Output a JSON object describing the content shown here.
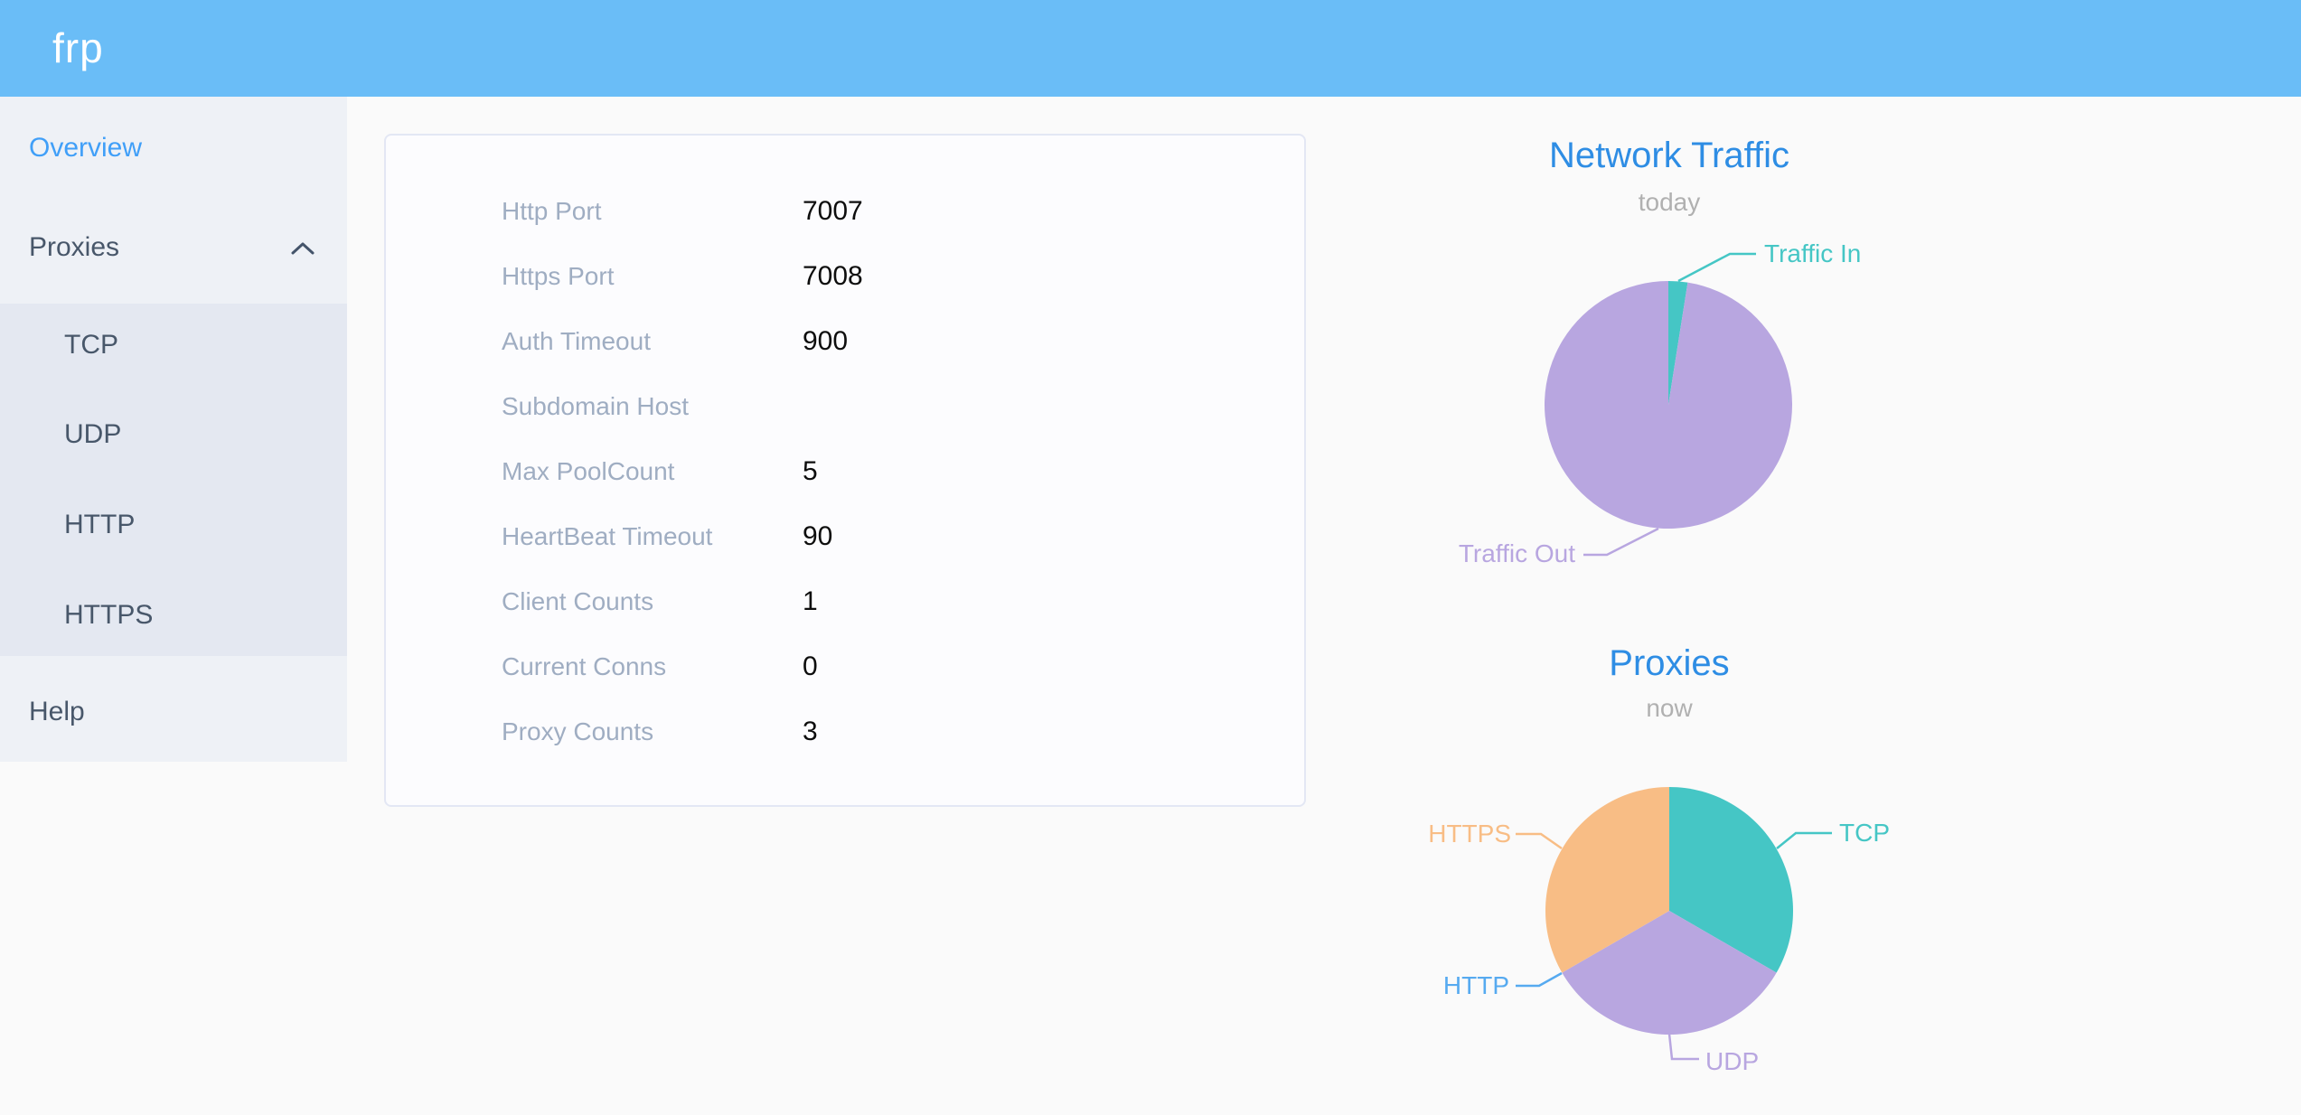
{
  "header": {
    "logo": "frp"
  },
  "sidebar": {
    "items": [
      {
        "label": "Overview",
        "active": true
      },
      {
        "label": "Proxies",
        "expanded": true
      },
      {
        "label": "Help"
      }
    ],
    "proxies_children": [
      "TCP",
      "UDP",
      "HTTP",
      "HTTPS"
    ]
  },
  "server_info": {
    "rows": [
      {
        "label": "Http Port",
        "value": "7007"
      },
      {
        "label": "Https Port",
        "value": "7008"
      },
      {
        "label": "Auth Timeout",
        "value": "900"
      },
      {
        "label": "Subdomain Host",
        "value": ""
      },
      {
        "label": "Max PoolCount",
        "value": "5"
      },
      {
        "label": "HeartBeat Timeout",
        "value": "90"
      },
      {
        "label": "Client Counts",
        "value": "1"
      },
      {
        "label": "Current Conns",
        "value": "0"
      },
      {
        "label": "Proxy Counts",
        "value": "3"
      }
    ]
  },
  "chart_data": [
    {
      "type": "pie",
      "title": "Network Traffic",
      "subtitle": "today",
      "legend_position": "none",
      "label_style": "outside with leader lines",
      "value_unit": "percent, estimated from slice angles (no numeric labels shown)",
      "series": [
        {
          "name": "Traffic In",
          "value": 2.5,
          "color": "#45c6c5"
        },
        {
          "name": "Traffic Out",
          "value": 97.5,
          "color": "#b8a6e0"
        }
      ]
    },
    {
      "type": "pie",
      "title": "Proxies",
      "subtitle": "now",
      "legend_position": "none",
      "label_style": "outside with leader lines",
      "value_unit": "proxy count (three equal slices, HTTP slice empty)",
      "series": [
        {
          "name": "TCP",
          "value": 1,
          "color": "#45c6c5"
        },
        {
          "name": "UDP",
          "value": 1,
          "color": "#b8a6e0"
        },
        {
          "name": "HTTP",
          "value": 0,
          "color": "#56aaf0"
        },
        {
          "name": "HTTPS",
          "value": 1,
          "color": "#f8bd85"
        }
      ]
    }
  ],
  "colors": {
    "header_bg": "#6abdf7",
    "sidebar_bg": "#eef1f6",
    "submenu_bg": "#e4e8f1",
    "menu_text": "#48576a",
    "menu_active": "#409ff8",
    "panel_label": "#9fadc2",
    "panel_value": "#0d0d0d",
    "chart_title": "#2e8de4",
    "chart_subtitle": "#b0b0b0"
  }
}
